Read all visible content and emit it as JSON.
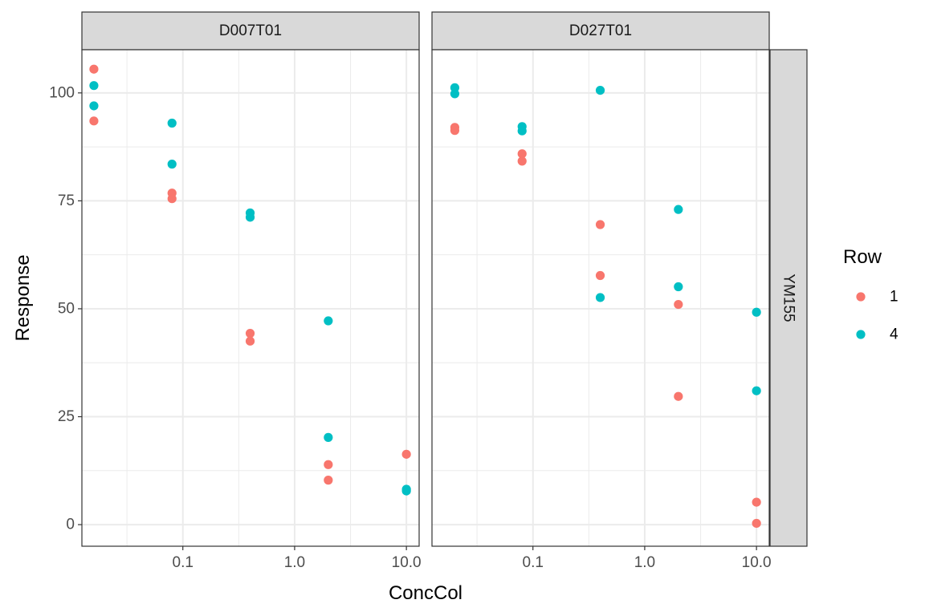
{
  "chart_data": {
    "type": "scatter",
    "xlabel": "ConcCol",
    "ylabel": "Response",
    "x_scale": "log10",
    "xlim": [
      0.0125,
      13
    ],
    "ylim": [
      -5,
      110
    ],
    "x_ticks": [
      {
        "value": 0.1,
        "label": "0.1"
      },
      {
        "value": 1.0,
        "label": "1.0"
      },
      {
        "value": 10.0,
        "label": "10.0"
      }
    ],
    "y_ticks": [
      {
        "value": 0,
        "label": "0"
      },
      {
        "value": 25,
        "label": "25"
      },
      {
        "value": 50,
        "label": "50"
      },
      {
        "value": 75,
        "label": "75"
      },
      {
        "value": 100,
        "label": "100"
      }
    ],
    "grid": true,
    "row_facet": "YM155",
    "legend": {
      "title": "Row",
      "position": "right",
      "entries": [
        {
          "key": "1",
          "label": "1",
          "color": "#F8766D"
        },
        {
          "key": "4",
          "label": "4",
          "color": "#00BFC4"
        }
      ]
    },
    "panels": [
      {
        "title": "D007T01",
        "series": [
          {
            "key": "1",
            "points": [
              {
                "x": 0.016,
                "y": 105.5
              },
              {
                "x": 0.016,
                "y": 93.5
              },
              {
                "x": 0.08,
                "y": 76.8
              },
              {
                "x": 0.08,
                "y": 75.5
              },
              {
                "x": 0.4,
                "y": 44.3
              },
              {
                "x": 0.4,
                "y": 42.5
              },
              {
                "x": 2.0,
                "y": 13.9
              },
              {
                "x": 2.0,
                "y": 10.3
              },
              {
                "x": 10.0,
                "y": 16.3
              }
            ]
          },
          {
            "key": "4",
            "points": [
              {
                "x": 0.016,
                "y": 101.7
              },
              {
                "x": 0.016,
                "y": 97.0
              },
              {
                "x": 0.08,
                "y": 93.0
              },
              {
                "x": 0.08,
                "y": 83.5
              },
              {
                "x": 0.4,
                "y": 72.2
              },
              {
                "x": 0.4,
                "y": 71.2
              },
              {
                "x": 2.0,
                "y": 47.2
              },
              {
                "x": 2.0,
                "y": 20.2
              },
              {
                "x": 10.0,
                "y": 8.2
              },
              {
                "x": 10.0,
                "y": 7.8
              }
            ]
          }
        ]
      },
      {
        "title": "D027T01",
        "series": [
          {
            "key": "1",
            "points": [
              {
                "x": 0.02,
                "y": 92.0
              },
              {
                "x": 0.02,
                "y": 91.3
              },
              {
                "x": 0.08,
                "y": 85.9
              },
              {
                "x": 0.08,
                "y": 84.2
              },
              {
                "x": 0.4,
                "y": 69.5
              },
              {
                "x": 0.4,
                "y": 57.7
              },
              {
                "x": 2.0,
                "y": 51.0
              },
              {
                "x": 2.0,
                "y": 29.7
              },
              {
                "x": 10.0,
                "y": 5.2
              },
              {
                "x": 10.0,
                "y": 0.3
              }
            ]
          },
          {
            "key": "4",
            "points": [
              {
                "x": 0.02,
                "y": 101.2
              },
              {
                "x": 0.02,
                "y": 99.8
              },
              {
                "x": 0.08,
                "y": 92.2
              },
              {
                "x": 0.08,
                "y": 91.2
              },
              {
                "x": 0.4,
                "y": 100.6
              },
              {
                "x": 0.4,
                "y": 52.6
              },
              {
                "x": 2.0,
                "y": 73.0
              },
              {
                "x": 2.0,
                "y": 55.1
              },
              {
                "x": 10.0,
                "y": 49.2
              },
              {
                "x": 10.0,
                "y": 31.0
              }
            ]
          }
        ]
      }
    ]
  }
}
